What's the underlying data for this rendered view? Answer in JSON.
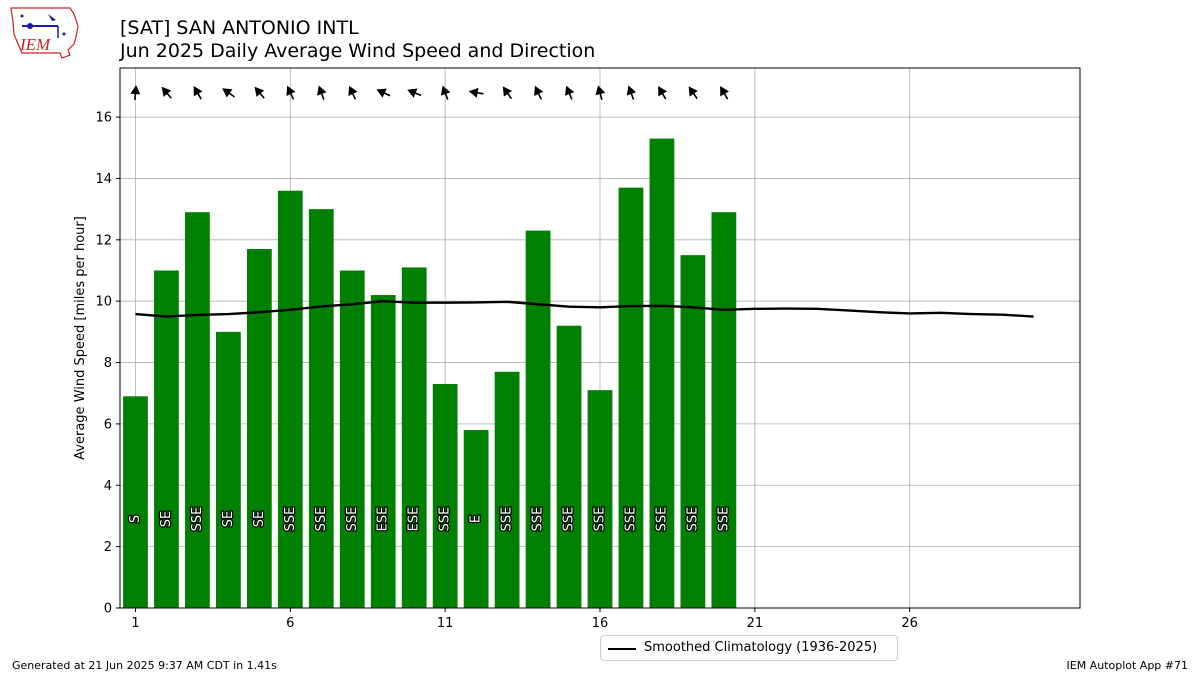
{
  "header": {
    "station": "[SAT] SAN ANTONIO INTL",
    "subtitle": "Jun 2025 Daily Average Wind Speed and Direction",
    "logo_text": "IEM"
  },
  "footer": {
    "generated": "Generated at 21 Jun 2025 9:37 AM CDT in 1.41s",
    "app": "IEM Autoplot App #71"
  },
  "colors": {
    "bar": "#008000",
    "climatology": "#000000",
    "grid": "#b0b0b0",
    "logo_red": "#d0202a",
    "logo_blue": "#1a1aa6"
  },
  "chart_data": {
    "type": "bar",
    "ylabel": "Average Wind Speed [miles per hour]",
    "xlim": [
      0.5,
      31.5
    ],
    "ylim": [
      0,
      17.6
    ],
    "xticks": [
      1,
      6,
      11,
      16,
      21,
      26
    ],
    "yticks": [
      0,
      2,
      4,
      6,
      8,
      10,
      12,
      14,
      16
    ],
    "grid": true,
    "legend_position": "bottom-center",
    "series": [
      {
        "kind": "bar",
        "days": [
          1,
          2,
          3,
          4,
          5,
          6,
          7,
          8,
          9,
          10,
          11,
          12,
          13,
          14,
          15,
          16,
          17,
          18,
          19,
          20
        ],
        "values": [
          6.9,
          11.0,
          12.9,
          9.0,
          11.7,
          13.6,
          13.0,
          11.0,
          10.2,
          11.1,
          7.3,
          5.8,
          7.7,
          12.3,
          9.2,
          7.1,
          13.7,
          15.3,
          11.5,
          12.9
        ],
        "direction_labels": [
          "S",
          "SE",
          "SSE",
          "SE",
          "SE",
          "SSE",
          "SSE",
          "SSE",
          "ESE",
          "ESE",
          "SSE",
          "E",
          "SSE",
          "SSE",
          "SSE",
          "SSE",
          "SSE",
          "SSE",
          "SSE",
          "SSE"
        ],
        "direction_degrees": [
          185,
          140,
          150,
          125,
          140,
          155,
          160,
          155,
          115,
          112,
          160,
          100,
          145,
          155,
          158,
          165,
          160,
          150,
          145,
          150
        ]
      },
      {
        "kind": "line",
        "name": "Smoothed Climatology (1936-2025)",
        "x": [
          1,
          2,
          3,
          4,
          5,
          6,
          7,
          8,
          9,
          10,
          11,
          12,
          13,
          14,
          15,
          16,
          17,
          18,
          19,
          20,
          21,
          22,
          23,
          24,
          25,
          26,
          27,
          28,
          29,
          30
        ],
        "y": [
          9.58,
          9.5,
          9.55,
          9.58,
          9.64,
          9.72,
          9.83,
          9.9,
          10.0,
          9.95,
          9.95,
          9.96,
          9.98,
          9.9,
          9.82,
          9.8,
          9.84,
          9.85,
          9.8,
          9.72,
          9.75,
          9.76,
          9.75,
          9.7,
          9.64,
          9.6,
          9.62,
          9.58,
          9.56,
          9.5
        ]
      }
    ]
  }
}
